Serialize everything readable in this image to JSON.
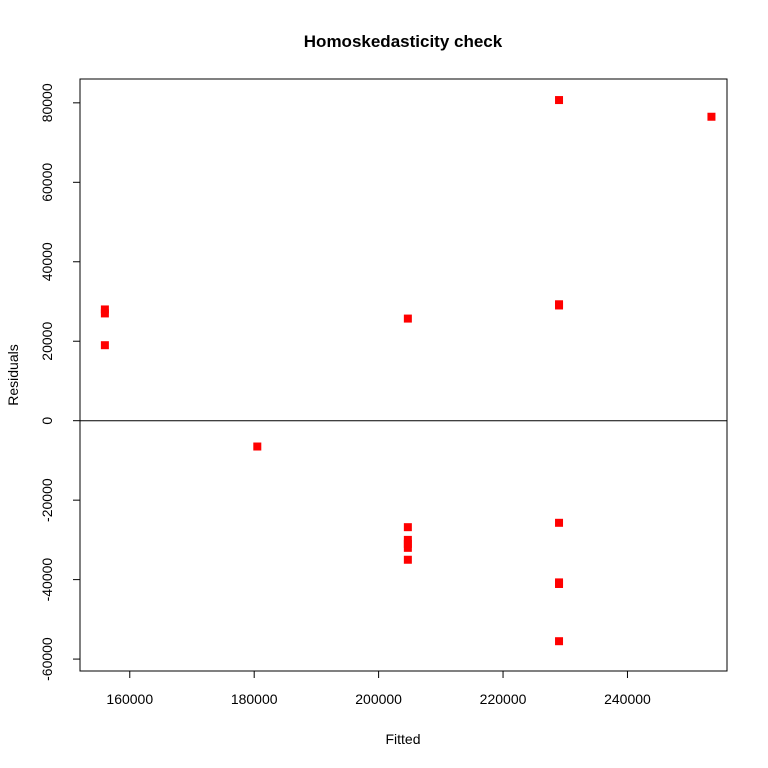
{
  "chart_data": {
    "type": "scatter",
    "title": "Homoskedasticity check",
    "xlabel": "Fitted",
    "ylabel": "Residuals",
    "xlim": [
      152000,
      256000
    ],
    "ylim": [
      -63000,
      86000
    ],
    "x_ticks": [
      160000,
      180000,
      200000,
      220000,
      240000
    ],
    "y_ticks": [
      -60000,
      -40000,
      -20000,
      0,
      20000,
      40000,
      60000,
      80000
    ],
    "reference_line_y": 0,
    "grid": false,
    "legend": "none",
    "marker_color": "#ff0000",
    "marker_shape": "square",
    "points": [
      {
        "x": 156000,
        "y": 28000
      },
      {
        "x": 156000,
        "y": 27000
      },
      {
        "x": 156000,
        "y": 19000
      },
      {
        "x": 180500,
        "y": -6500
      },
      {
        "x": 204700,
        "y": 25700
      },
      {
        "x": 204700,
        "y": -26800
      },
      {
        "x": 204700,
        "y": -30000
      },
      {
        "x": 204700,
        "y": -31000
      },
      {
        "x": 204700,
        "y": -32000
      },
      {
        "x": 204700,
        "y": -35000
      },
      {
        "x": 229000,
        "y": 80700
      },
      {
        "x": 229000,
        "y": 29300
      },
      {
        "x": 229000,
        "y": 29000
      },
      {
        "x": 229000,
        "y": -25700
      },
      {
        "x": 229000,
        "y": -40700
      },
      {
        "x": 229000,
        "y": -41100
      },
      {
        "x": 229000,
        "y": -55500
      },
      {
        "x": 253500,
        "y": 76500
      }
    ]
  }
}
